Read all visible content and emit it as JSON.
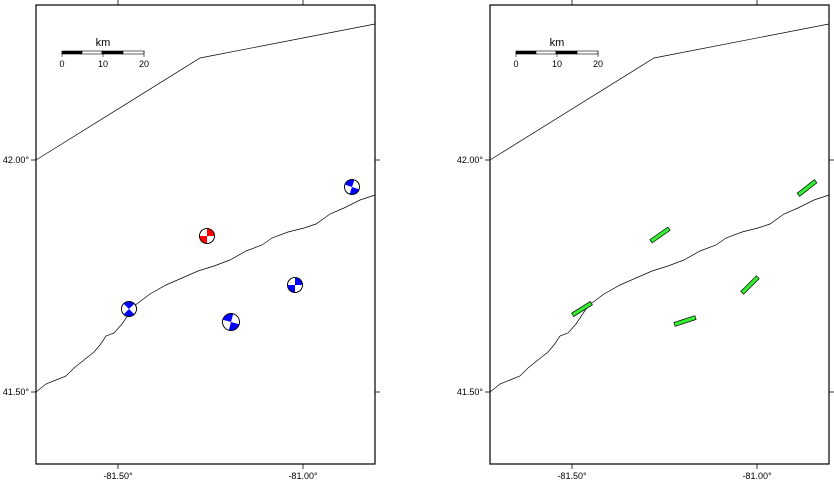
{
  "maps": [
    {
      "name": "left-map",
      "lon_labels": [
        "-81.50°",
        "-81.00°"
      ],
      "lat_labels": [
        "42.00°",
        "41.50°"
      ],
      "scalebar": {
        "unit": "km",
        "ticks": [
          "0",
          "10",
          "20"
        ]
      },
      "symbol_type": "focal-mechanism",
      "colors": {
        "blue": "#0000ff",
        "red": "#ff0000"
      }
    },
    {
      "name": "right-map",
      "lon_labels": [
        "-81.50°",
        "-81.00°"
      ],
      "lat_labels": [
        "42.00°",
        "41.50°"
      ],
      "scalebar": {
        "unit": "km",
        "ticks": [
          "0",
          "10",
          "20"
        ]
      },
      "symbol_type": "strike-bar",
      "colors": {
        "green": "#33ee33"
      }
    }
  ],
  "events": [
    {
      "lon": -81.23,
      "lat": 41.84,
      "color": "red"
    },
    {
      "lon": -80.82,
      "lat": 41.94,
      "color": "blue"
    },
    {
      "lon": -81.45,
      "lat": 41.68,
      "color": "blue"
    },
    {
      "lon": -80.98,
      "lat": 41.73,
      "color": "blue"
    },
    {
      "lon": -81.17,
      "lat": 41.66,
      "color": "blue"
    }
  ]
}
